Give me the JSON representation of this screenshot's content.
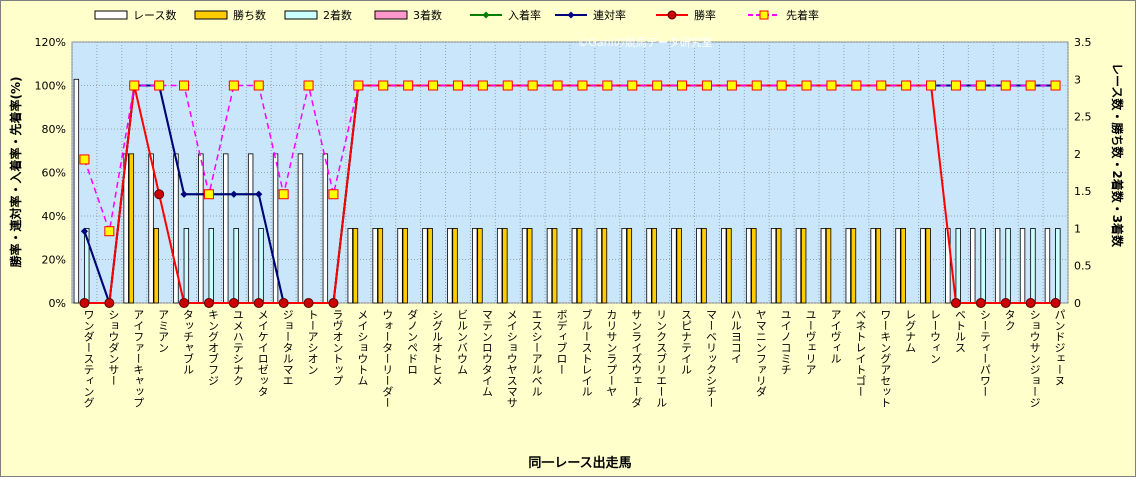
{
  "chart_data": {
    "type": "bar",
    "xlabel": "同一レース出走馬",
    "ylabel_left": "勝率・連対率・入着率・先着率(%)",
    "ylabel_right": "レース数・勝ち数・2着数・3着数",
    "watermark": "©Ganiの競馬データ研究室",
    "y_left": {
      "min": 0,
      "max": 120,
      "ticks": [
        "0%",
        "20%",
        "40%",
        "60%",
        "80%",
        "100%",
        "120%"
      ]
    },
    "y_right": {
      "min": 0,
      "max": 3.5,
      "ticks": [
        "0",
        "0.5",
        "1",
        "1.5",
        "2",
        "2.5",
        "3",
        "3.5"
      ]
    },
    "grid": true,
    "legend_position": "top",
    "categories": [
      "ワンダースティング",
      "ショウダンサー",
      "アイファーキャップ",
      "アミアン",
      "タッチャブル",
      "キングオブフジ",
      "ユメハテシナク",
      "メイケイロゼッタ",
      "ジョータルマエ",
      "トーアシオン",
      "ラヴオントップ",
      "メイショウトム",
      "ウォーターリーダー",
      "ダノンペドロ",
      "シグルオトヒメ",
      "ビルンバウム",
      "マテンロウタイム",
      "メイショウヤスマサ",
      "エスシーアルベル",
      "ボディブロー",
      "ブルーストレイル",
      "カリサンラプーヤ",
      "サンライズウェーダ",
      "リンクスブリエール",
      "スピナテイル",
      "マーベリックシチー",
      "ハルヨコイ",
      "ヤマニンファリダ",
      "ユイノコミチ",
      "ユーヴェリア",
      "アイヴィル",
      "ベネトレイトゴー",
      "ワーキングアセット",
      "レグナム",
      "レーウィン",
      "ベトルス",
      "シーティーパワー",
      "タク",
      "ショウサンジョージ",
      "パンドジェーヌ"
    ],
    "series": [
      {
        "name": "レース数",
        "kind": "bar",
        "axis": "right",
        "color": "#ffffff",
        "values": [
          3,
          0,
          2,
          2,
          2,
          2,
          2,
          2,
          2,
          2,
          2,
          1,
          1,
          1,
          1,
          1,
          1,
          1,
          1,
          1,
          1,
          1,
          1,
          1,
          1,
          1,
          1,
          1,
          1,
          1,
          1,
          1,
          1,
          1,
          1,
          1,
          1,
          1,
          1,
          1
        ]
      },
      {
        "name": "勝ち数",
        "kind": "bar",
        "axis": "right",
        "color": "#ffcc00",
        "values": [
          0,
          0,
          2,
          1,
          0,
          0,
          0,
          0,
          0,
          0,
          0,
          1,
          1,
          1,
          1,
          1,
          1,
          1,
          1,
          1,
          1,
          1,
          1,
          1,
          1,
          1,
          1,
          1,
          1,
          1,
          1,
          1,
          1,
          1,
          1,
          0,
          0,
          0,
          0,
          0
        ]
      },
      {
        "name": "2着数",
        "kind": "bar",
        "axis": "right",
        "color": "#ccffff",
        "values": [
          1,
          0,
          0,
          0,
          1,
          1,
          1,
          1,
          0,
          0,
          0,
          0,
          0,
          0,
          0,
          0,
          0,
          0,
          0,
          0,
          0,
          0,
          0,
          0,
          0,
          0,
          0,
          0,
          0,
          0,
          0,
          0,
          0,
          0,
          0,
          1,
          1,
          1,
          1,
          1
        ]
      },
      {
        "name": "3着数",
        "kind": "bar",
        "axis": "right",
        "color": "#ff99cc",
        "values": [
          0,
          0,
          0,
          0,
          0,
          0,
          0,
          0,
          0,
          0,
          0,
          0,
          0,
          0,
          0,
          0,
          0,
          0,
          0,
          0,
          0,
          0,
          0,
          0,
          0,
          0,
          0,
          0,
          0,
          0,
          0,
          0,
          0,
          0,
          0,
          0,
          0,
          0,
          0,
          0
        ]
      },
      {
        "name": "入着率",
        "kind": "line",
        "axis": "left",
        "color": "#008000",
        "values": [
          33,
          0,
          100,
          100,
          50,
          50,
          50,
          50,
          0,
          0,
          0,
          100,
          100,
          100,
          100,
          100,
          100,
          100,
          100,
          100,
          100,
          100,
          100,
          100,
          100,
          100,
          100,
          100,
          100,
          100,
          100,
          100,
          100,
          100,
          100,
          100,
          100,
          100,
          100,
          100
        ]
      },
      {
        "name": "連対率",
        "kind": "line",
        "axis": "left",
        "color": "#000080",
        "values": [
          33,
          0,
          100,
          100,
          50,
          50,
          50,
          50,
          0,
          0,
          0,
          100,
          100,
          100,
          100,
          100,
          100,
          100,
          100,
          100,
          100,
          100,
          100,
          100,
          100,
          100,
          100,
          100,
          100,
          100,
          100,
          100,
          100,
          100,
          100,
          100,
          100,
          100,
          100,
          100
        ]
      },
      {
        "name": "勝率",
        "kind": "line",
        "axis": "left",
        "color": "#ff0000",
        "values": [
          0,
          0,
          100,
          50,
          0,
          0,
          0,
          0,
          0,
          0,
          0,
          100,
          100,
          100,
          100,
          100,
          100,
          100,
          100,
          100,
          100,
          100,
          100,
          100,
          100,
          100,
          100,
          100,
          100,
          100,
          100,
          100,
          100,
          100,
          100,
          0,
          0,
          0,
          0,
          0
        ]
      },
      {
        "name": "先着率",
        "kind": "line",
        "axis": "left",
        "color": "#ff00ff",
        "values": [
          66,
          33,
          100,
          100,
          100,
          50,
          100,
          100,
          50,
          100,
          50,
          100,
          100,
          100,
          100,
          100,
          100,
          100,
          100,
          100,
          100,
          100,
          100,
          100,
          100,
          100,
          100,
          100,
          100,
          100,
          100,
          100,
          100,
          100,
          100,
          100,
          100,
          100,
          100,
          100
        ]
      }
    ]
  }
}
